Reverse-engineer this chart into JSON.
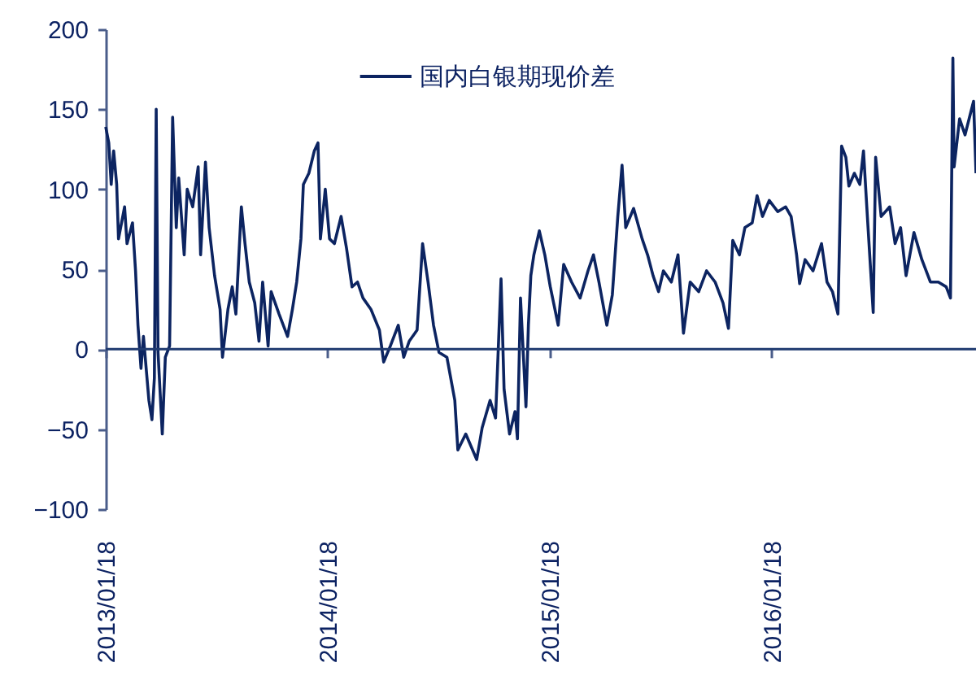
{
  "chart_data": {
    "type": "line",
    "legend": "top",
    "grid": false,
    "marker": "none",
    "line_style": "solid",
    "xlim": [
      "2013-01-18",
      "2016-12-19"
    ],
    "xticks": [
      {
        "value": "2013-01-18",
        "label": "2013/01/18"
      },
      {
        "value": "2014-01-18",
        "label": "2014/01/18"
      },
      {
        "value": "2015-01-18",
        "label": "2015/01/18"
      },
      {
        "value": "2016-01-18",
        "label": "2016/01/18"
      }
    ],
    "ref_lines": [
      {
        "axis": "y",
        "value": 0,
        "color": "#1f3a70"
      }
    ],
    "ylim": [
      -100,
      200
    ],
    "yticks": [
      -100,
      -50,
      0,
      50,
      100,
      150,
      200
    ],
    "x": [
      "2013-01-18",
      "2013-01-23",
      "2013-01-27",
      "2013-01-31",
      "2013-02-05",
      "2013-02-08",
      "2013-02-18",
      "2013-02-22",
      "2013-03-03",
      "2013-03-08",
      "2013-03-12",
      "2013-03-17",
      "2013-03-21",
      "2013-03-30",
      "2013-04-04",
      "2013-04-08",
      "2013-04-11",
      "2013-04-14",
      "2013-04-21",
      "2013-04-26",
      "2013-05-03",
      "2013-05-08",
      "2013-05-14",
      "2013-05-18",
      "2013-05-27",
      "2013-06-01",
      "2013-06-10",
      "2013-06-19",
      "2013-06-23",
      "2013-07-01",
      "2013-07-07",
      "2013-07-16",
      "2013-07-25",
      "2013-07-29",
      "2013-08-07",
      "2013-08-14",
      "2013-08-20",
      "2013-08-29",
      "2013-09-04",
      "2013-09-11",
      "2013-09-20",
      "2013-09-27",
      "2013-10-03",
      "2013-10-12",
      "2013-10-17",
      "2013-10-30",
      "2013-11-13",
      "2013-11-21",
      "2013-11-28",
      "2013-12-05",
      "2013-12-09",
      "2013-12-18",
      "2013-12-27",
      "2014-01-02",
      "2014-01-06",
      "2014-01-14",
      "2014-01-21",
      "2014-01-29",
      "2014-02-09",
      "2014-02-18",
      "2014-02-27",
      "2014-03-08",
      "2014-03-17",
      "2014-03-30",
      "2014-04-13",
      "2014-04-20",
      "2014-05-01",
      "2014-05-14",
      "2014-05-23",
      "2014-06-01",
      "2014-06-14",
      "2014-06-23",
      "2014-07-02",
      "2014-07-11",
      "2014-07-20",
      "2014-08-02",
      "2014-08-15",
      "2014-08-20",
      "2014-09-02",
      "2014-09-20",
      "2014-09-29",
      "2014-10-12",
      "2014-10-21",
      "2014-10-30",
      "2014-11-04",
      "2014-11-13",
      "2014-11-22",
      "2014-11-26",
      "2014-12-01",
      "2014-12-10",
      "2014-12-14",
      "2014-12-18",
      "2014-12-23",
      "2015-01-01",
      "2015-01-10",
      "2015-01-19",
      "2015-02-01",
      "2015-02-10",
      "2015-02-23",
      "2015-03-09",
      "2015-03-22",
      "2015-03-31",
      "2015-04-09",
      "2015-04-22",
      "2015-05-01",
      "2015-05-10",
      "2015-05-17",
      "2015-05-23",
      "2015-06-05",
      "2015-06-19",
      "2015-06-28",
      "2015-07-07",
      "2015-07-16",
      "2015-07-24",
      "2015-08-06",
      "2015-08-17",
      "2015-08-26",
      "2015-09-06",
      "2015-09-20",
      "2015-10-03",
      "2015-10-17",
      "2015-10-30",
      "2015-11-08",
      "2015-11-15",
      "2015-11-26",
      "2015-12-05",
      "2015-12-17",
      "2015-12-25",
      "2016-01-03",
      "2016-01-14",
      "2016-01-28",
      "2016-02-10",
      "2016-02-19",
      "2016-02-28",
      "2016-03-04",
      "2016-03-13",
      "2016-03-26",
      "2016-04-09",
      "2016-04-18",
      "2016-04-27",
      "2016-05-06",
      "2016-05-12",
      "2016-05-19",
      "2016-05-24",
      "2016-06-02",
      "2016-06-11",
      "2016-06-17",
      "2016-06-24",
      "2016-07-03",
      "2016-07-07",
      "2016-07-16",
      "2016-07-30",
      "2016-08-08",
      "2016-08-17",
      "2016-08-26",
      "2016-09-08",
      "2016-09-21",
      "2016-10-05",
      "2016-10-18",
      "2016-10-31",
      "2016-11-07",
      "2016-11-11",
      "2016-11-13",
      "2016-11-22",
      "2016-12-01",
      "2016-12-15",
      "2016-12-19"
    ],
    "series": [
      {
        "name": "国内白银期现价差",
        "color": "#0c2461",
        "values": [
          139,
          129,
          103,
          124,
          103,
          69,
          89,
          66,
          79,
          49,
          15,
          -12,
          8,
          -32,
          -44,
          -18,
          150,
          -2,
          -53,
          -5,
          2,
          145,
          76,
          107,
          59,
          100,
          89,
          114,
          59,
          117,
          76,
          46,
          25,
          -5,
          25,
          39,
          22,
          89,
          66,
          42,
          29,
          5,
          42,
          2,
          36,
          22,
          8,
          25,
          42,
          69,
          103,
          110,
          124,
          129,
          69,
          100,
          69,
          66,
          83,
          63,
          39,
          42,
          32,
          25,
          12,
          -8,
          2,
          15,
          -5,
          5,
          12,
          66,
          42,
          15,
          -2,
          -5,
          -32,
          -63,
          -53,
          -69,
          -49,
          -32,
          -43,
          44,
          -25,
          -53,
          -39,
          -56,
          32,
          -36,
          15,
          46,
          59,
          74,
          59,
          39,
          15,
          53,
          42,
          32,
          49,
          59,
          42,
          15,
          34,
          83,
          115,
          76,
          88,
          69,
          59,
          46,
          36,
          49,
          42,
          59,
          10,
          42,
          36,
          49,
          42,
          29,
          13,
          68,
          59,
          76,
          79,
          96,
          83,
          93,
          86,
          89,
          83,
          59,
          41,
          56,
          49,
          66,
          42,
          36,
          22,
          127,
          120,
          102,
          110,
          103,
          124,
          79,
          23,
          120,
          83,
          89,
          66,
          76,
          46,
          73,
          56,
          42,
          42,
          39,
          32,
          182,
          114,
          144,
          134,
          155,
          110
        ]
      }
    ]
  }
}
